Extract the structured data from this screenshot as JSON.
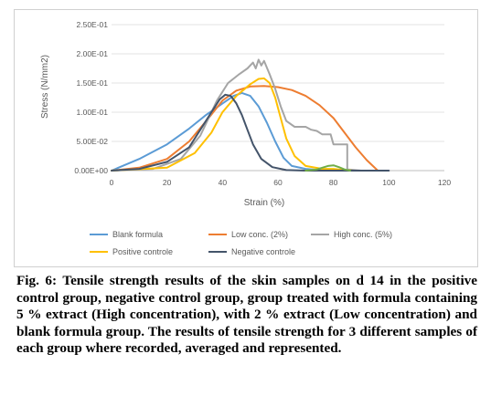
{
  "chart_data": {
    "type": "line",
    "title": "",
    "xlabel": "Strain (%)",
    "ylabel": "Stress (N/mm2)",
    "xlim": [
      0,
      120
    ],
    "ylim": [
      0,
      0.25
    ],
    "x_ticks": [
      0,
      20,
      40,
      60,
      80,
      100,
      120
    ],
    "x_tick_labels": [
      "0",
      "20",
      "40",
      "60",
      "80",
      "100",
      "120"
    ],
    "y_ticks": [
      0,
      0.05,
      0.1,
      0.15,
      0.2,
      0.25
    ],
    "y_tick_labels": [
      "0.00E+00",
      "5.00E-02",
      "1.00E-01",
      "1.50E-01",
      "2.00E-01",
      "2.50E-01"
    ],
    "grid": "horizontal",
    "legend": "bottom",
    "series": [
      {
        "name": "Blank formula",
        "color": "#5b9bd5",
        "points": [
          [
            0,
            0
          ],
          [
            5,
            0.01
          ],
          [
            10,
            0.02
          ],
          [
            20,
            0.045
          ],
          [
            28,
            0.072
          ],
          [
            34,
            0.095
          ],
          [
            40,
            0.115
          ],
          [
            44,
            0.128
          ],
          [
            47,
            0.133
          ],
          [
            50,
            0.128
          ],
          [
            53,
            0.11
          ],
          [
            56,
            0.082
          ],
          [
            59,
            0.05
          ],
          [
            62,
            0.022
          ],
          [
            65,
            0.008
          ],
          [
            70,
            0.003
          ],
          [
            75,
            0.001
          ],
          [
            80,
            0
          ]
        ]
      },
      {
        "name": "Low conc. (2%)",
        "color": "#ed7d31",
        "points": [
          [
            0,
            0
          ],
          [
            10,
            0.005
          ],
          [
            20,
            0.02
          ],
          [
            28,
            0.05
          ],
          [
            35,
            0.09
          ],
          [
            40,
            0.12
          ],
          [
            45,
            0.137
          ],
          [
            50,
            0.144
          ],
          [
            55,
            0.145
          ],
          [
            60,
            0.143
          ],
          [
            65,
            0.138
          ],
          [
            70,
            0.128
          ],
          [
            75,
            0.112
          ],
          [
            80,
            0.09
          ],
          [
            84,
            0.065
          ],
          [
            88,
            0.04
          ],
          [
            92,
            0.018
          ],
          [
            96,
            0
          ]
        ]
      },
      {
        "name": "High conc. (5%)",
        "color": "#a5a5a5",
        "points": [
          [
            0,
            0
          ],
          [
            15,
            0.003
          ],
          [
            25,
            0.02
          ],
          [
            32,
            0.06
          ],
          [
            38,
            0.12
          ],
          [
            42,
            0.15
          ],
          [
            46,
            0.165
          ],
          [
            49,
            0.175
          ],
          [
            51,
            0.185
          ],
          [
            52,
            0.175
          ],
          [
            53,
            0.19
          ],
          [
            54,
            0.18
          ],
          [
            55,
            0.188
          ],
          [
            57,
            0.165
          ],
          [
            59,
            0.14
          ],
          [
            61,
            0.11
          ],
          [
            63,
            0.085
          ],
          [
            66,
            0.075
          ],
          [
            70,
            0.075
          ],
          [
            72,
            0.07
          ],
          [
            74,
            0.068
          ],
          [
            76,
            0.062
          ],
          [
            79,
            0.062
          ],
          [
            80,
            0.045
          ],
          [
            85,
            0.045
          ],
          [
            85,
            0.002
          ],
          [
            90,
            0
          ]
        ]
      },
      {
        "name": "Positive controle",
        "color": "#ffc000",
        "points": [
          [
            0,
            0
          ],
          [
            20,
            0.005
          ],
          [
            30,
            0.03
          ],
          [
            36,
            0.065
          ],
          [
            40,
            0.1
          ],
          [
            45,
            0.128
          ],
          [
            50,
            0.148
          ],
          [
            53,
            0.157
          ],
          [
            55,
            0.158
          ],
          [
            57,
            0.15
          ],
          [
            59,
            0.125
          ],
          [
            61,
            0.09
          ],
          [
            63,
            0.055
          ],
          [
            66,
            0.025
          ],
          [
            70,
            0.008
          ],
          [
            76,
            0.003
          ],
          [
            80,
            0.003
          ],
          [
            84,
            0.001
          ],
          [
            87,
            0
          ]
        ]
      },
      {
        "name": "Negative controle",
        "color": "#44546a",
        "points": [
          [
            0,
            0
          ],
          [
            10,
            0.003
          ],
          [
            20,
            0.015
          ],
          [
            28,
            0.04
          ],
          [
            32,
            0.07
          ],
          [
            36,
            0.1
          ],
          [
            39,
            0.122
          ],
          [
            41,
            0.13
          ],
          [
            43,
            0.128
          ],
          [
            45,
            0.115
          ],
          [
            47,
            0.095
          ],
          [
            49,
            0.07
          ],
          [
            51,
            0.045
          ],
          [
            54,
            0.02
          ],
          [
            58,
            0.006
          ],
          [
            63,
            0.001
          ],
          [
            70,
            0
          ],
          [
            100,
            0
          ]
        ]
      },
      {
        "name": "",
        "color": "#70ad47",
        "points": [
          [
            70,
            0
          ],
          [
            74,
            0.002
          ],
          [
            78,
            0.008
          ],
          [
            80,
            0.009
          ],
          [
            82,
            0.006
          ],
          [
            84,
            0.002
          ],
          [
            86,
            0
          ]
        ]
      }
    ]
  },
  "caption": {
    "text": "Fig. 6:  Tensile strength results of the skin samples on d 14 in the positive control group, negative control group, group treated with formula containing 5 % extract (High concentration), with 2 % extract (Low concentration) and blank formula group. The results of tensile strength for 3 different samples of each group where recorded, averaged and represented."
  }
}
